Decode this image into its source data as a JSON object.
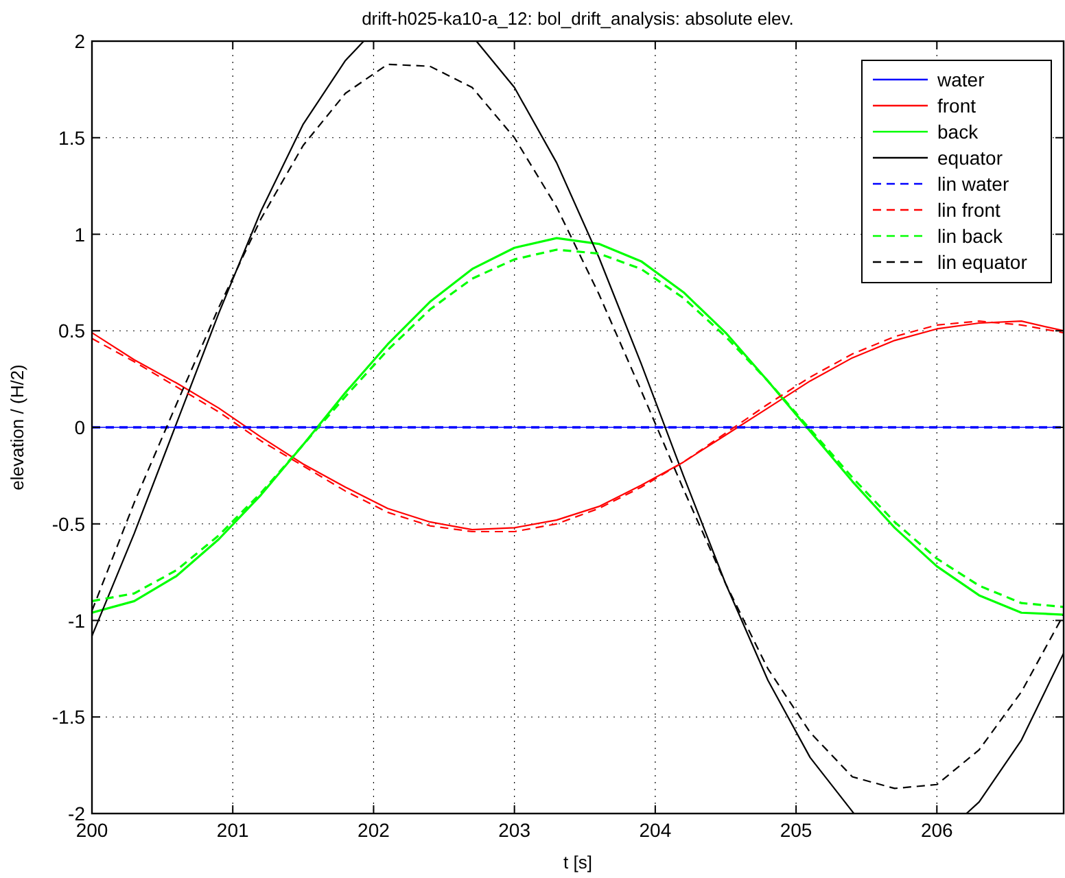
{
  "chart_data": {
    "type": "line",
    "title": "drift-h025-ka10-a_12: bol_drift_analysis: absolute elev.",
    "xlabel": "t [s]",
    "ylabel": "elevation / (H/2)",
    "x": [
      200,
      200.3,
      200.6,
      200.9,
      201.2,
      201.5,
      201.8,
      202.1,
      202.4,
      202.7,
      203,
      203.3,
      203.6,
      203.9,
      204.2,
      204.5,
      204.8,
      205.1,
      205.4,
      205.7,
      206,
      206.3,
      206.6,
      206.9
    ],
    "xlim": [
      200,
      206.9
    ],
    "xticks": [
      200,
      201,
      202,
      203,
      204,
      205,
      206
    ],
    "ylim": [
      -2,
      2
    ],
    "yticks": [
      -2,
      -1.5,
      -1,
      -0.5,
      0,
      0.5,
      1,
      1.5,
      2
    ],
    "grid": true,
    "legend": "top right",
    "series": [
      {
        "name": "water",
        "color": "#0000ff",
        "line_style": "solid",
        "x": [
          200,
          206.9
        ],
        "values": [
          0,
          0
        ]
      },
      {
        "name": "front",
        "color": "#ff0000",
        "line_style": "solid",
        "values": [
          0.49,
          0.35,
          0.23,
          0.1,
          -0.05,
          -0.19,
          -0.31,
          -0.42,
          -0.49,
          -0.53,
          -0.52,
          -0.48,
          -0.41,
          -0.3,
          -0.18,
          -0.04,
          0.1,
          0.24,
          0.36,
          0.45,
          0.51,
          0.54,
          0.55,
          0.5
        ]
      },
      {
        "name": "back",
        "color": "#00ff00",
        "line_style": "solid",
        "values": [
          -0.96,
          -0.9,
          -0.77,
          -0.58,
          -0.35,
          -0.09,
          0.18,
          0.43,
          0.65,
          0.82,
          0.93,
          0.98,
          0.95,
          0.86,
          0.7,
          0.49,
          0.24,
          -0.02,
          -0.28,
          -0.52,
          -0.72,
          -0.87,
          -0.96,
          -0.97
        ]
      },
      {
        "name": "equator",
        "color": "#000000",
        "line_style": "solid",
        "x": [
          200,
          200.3,
          200.6,
          200.9,
          201.2,
          201.5,
          201.8,
          201.93,
          202.73,
          203,
          203.3,
          203.6,
          203.9,
          204.2,
          204.5,
          204.8,
          205.1,
          205.4,
          205.41,
          206.21,
          206.3,
          206.6,
          206.9
        ],
        "values": [
          -1.08,
          -0.55,
          0.02,
          0.59,
          1.12,
          1.57,
          1.9,
          2,
          2,
          1.76,
          1.37,
          0.88,
          0.33,
          -0.25,
          -0.81,
          -1.31,
          -1.71,
          -1.99,
          -2,
          -2,
          -1.94,
          -1.62,
          -1.17
        ]
      },
      {
        "name": "lin water",
        "color": "#0000ff",
        "line_style": "dashed",
        "x": [
          200,
          206.9
        ],
        "values": [
          0,
          0
        ]
      },
      {
        "name": "lin front",
        "color": "#ff0000",
        "line_style": "dashed",
        "values": [
          0.46,
          0.34,
          0.21,
          0.08,
          -0.07,
          -0.2,
          -0.33,
          -0.44,
          -0.51,
          -0.54,
          -0.54,
          -0.5,
          -0.42,
          -0.31,
          -0.18,
          -0.03,
          0.12,
          0.26,
          0.38,
          0.47,
          0.53,
          0.55,
          0.53,
          0.49
        ]
      },
      {
        "name": "lin back",
        "color": "#00ff00",
        "line_style": "dashed",
        "values": [
          -0.9,
          -0.86,
          -0.74,
          -0.56,
          -0.34,
          -0.09,
          0.16,
          0.4,
          0.61,
          0.77,
          0.87,
          0.92,
          0.9,
          0.82,
          0.67,
          0.47,
          0.24,
          -0.01,
          -0.26,
          -0.49,
          -0.68,
          -0.82,
          -0.91,
          -0.93
        ]
      },
      {
        "name": "lin equator",
        "color": "#000000",
        "line_style": "dashed",
        "values": [
          -0.95,
          -0.39,
          0.12,
          0.62,
          1.08,
          1.46,
          1.73,
          1.88,
          1.87,
          1.76,
          1.5,
          1.14,
          0.69,
          0.19,
          -0.32,
          -0.81,
          -1.25,
          -1.58,
          -1.81,
          -1.87,
          -1.85,
          -1.67,
          -1.37,
          -0.97
        ]
      }
    ]
  }
}
